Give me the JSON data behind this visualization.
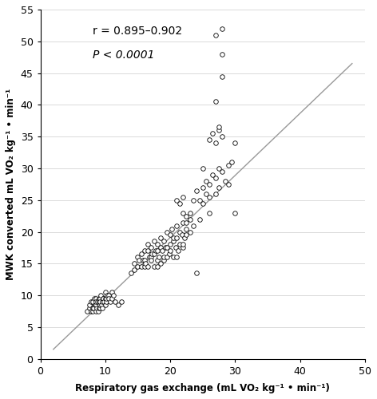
{
  "title": "",
  "xlabel": "Respiratory gas exchange (mL VO₂ kg⁻¹ • min⁻¹)",
  "ylabel": "MWK converted mL VO₂ kg⁻¹ • min⁻¹",
  "xlim": [
    0,
    50
  ],
  "ylim": [
    0,
    55
  ],
  "xticks": [
    0,
    10,
    20,
    30,
    40,
    50
  ],
  "yticks": [
    0,
    5,
    10,
    15,
    20,
    25,
    30,
    35,
    40,
    45,
    50,
    55
  ],
  "annotation_r": "r = 0.895–0.902",
  "annotation_p": "P < 0.0001",
  "line_color": "#999999",
  "line_x": [
    2.0,
    48.0
  ],
  "line_y": [
    1.5,
    46.5
  ],
  "marker_color": "black",
  "marker_facecolor": "white",
  "marker_size": 4,
  "x_data": [
    7.2,
    7.5,
    7.5,
    7.8,
    7.8,
    8.0,
    8.0,
    8.0,
    8.2,
    8.3,
    8.4,
    8.5,
    8.5,
    8.5,
    8.6,
    8.7,
    8.8,
    8.9,
    9.0,
    9.0,
    9.0,
    9.1,
    9.1,
    9.2,
    9.2,
    9.3,
    9.4,
    9.5,
    9.5,
    9.6,
    9.7,
    9.8,
    10.0,
    10.0,
    10.0,
    10.1,
    10.2,
    10.3,
    10.5,
    10.5,
    10.8,
    11.0,
    11.0,
    11.2,
    11.5,
    12.0,
    12.5,
    14.0,
    14.5,
    14.5,
    15.0,
    15.0,
    15.2,
    15.5,
    15.5,
    15.8,
    16.0,
    16.0,
    16.0,
    16.2,
    16.5,
    16.5,
    16.5,
    16.8,
    17.0,
    17.0,
    17.0,
    17.2,
    17.5,
    17.5,
    17.5,
    17.8,
    18.0,
    18.0,
    18.0,
    18.0,
    18.2,
    18.5,
    18.5,
    18.5,
    18.8,
    19.0,
    19.0,
    19.0,
    19.2,
    19.5,
    19.5,
    19.5,
    19.8,
    20.0,
    20.0,
    20.0,
    20.2,
    20.5,
    20.5,
    20.5,
    20.8,
    21.0,
    21.0,
    21.0,
    21.2,
    21.5,
    21.5,
    21.8,
    22.0,
    22.0,
    22.0,
    22.2,
    22.5,
    22.5,
    22.5,
    23.0,
    23.0,
    23.5,
    24.0,
    21.0,
    21.5,
    22.0,
    22.0,
    22.5,
    23.0,
    23.5,
    24.0,
    24.5,
    24.5,
    25.0,
    25.0,
    25.0,
    25.5,
    25.5,
    26.0,
    26.0,
    26.0,
    26.5,
    27.0,
    27.0,
    27.5,
    27.5,
    28.0,
    28.5,
    29.0,
    29.5,
    26.0,
    26.5,
    27.0,
    27.5,
    28.0,
    29.0,
    30.0,
    30.0,
    27.0,
    27.5,
    28.0,
    28.0,
    27.0,
    28.0
  ],
  "y_data": [
    7.5,
    8.0,
    8.5,
    7.5,
    9.0,
    7.5,
    8.0,
    9.0,
    8.0,
    9.5,
    8.5,
    7.5,
    8.5,
    9.5,
    9.0,
    8.0,
    9.0,
    7.5,
    8.0,
    9.0,
    9.5,
    8.0,
    9.5,
    8.5,
    9.0,
    10.0,
    8.5,
    8.0,
    9.0,
    9.5,
    9.5,
    9.0,
    8.5,
    9.5,
    10.5,
    9.0,
    9.5,
    10.0,
    10.0,
    9.5,
    9.0,
    10.5,
    9.5,
    10.0,
    9.0,
    8.5,
    9.0,
    13.5,
    14.0,
    15.0,
    14.5,
    16.0,
    15.5,
    14.5,
    16.5,
    15.5,
    14.5,
    15.5,
    17.0,
    15.0,
    14.5,
    17.0,
    18.0,
    16.0,
    16.0,
    17.5,
    15.5,
    16.5,
    16.5,
    18.5,
    14.5,
    17.0,
    14.5,
    15.5,
    17.0,
    18.0,
    16.0,
    17.5,
    19.0,
    15.0,
    17.0,
    18.5,
    15.5,
    16.0,
    17.5,
    16.0,
    17.5,
    20.0,
    16.5,
    18.0,
    19.5,
    17.0,
    20.5,
    18.5,
    16.0,
    19.0,
    17.5,
    16.0,
    19.0,
    21.0,
    17.0,
    18.0,
    20.0,
    19.5,
    17.5,
    21.5,
    18.0,
    19.0,
    20.5,
    19.5,
    21.5,
    20.0,
    22.0,
    21.0,
    13.5,
    25.0,
    24.5,
    23.0,
    25.5,
    22.5,
    23.0,
    25.0,
    26.5,
    22.0,
    25.0,
    24.5,
    27.0,
    30.0,
    26.0,
    28.0,
    25.5,
    27.5,
    23.0,
    29.0,
    26.0,
    28.5,
    27.0,
    30.0,
    29.5,
    28.0,
    30.5,
    31.0,
    34.5,
    35.5,
    34.0,
    36.0,
    35.0,
    27.5,
    23.0,
    34.0,
    40.5,
    36.5,
    44.5,
    48.0,
    51.0,
    52.0
  ]
}
